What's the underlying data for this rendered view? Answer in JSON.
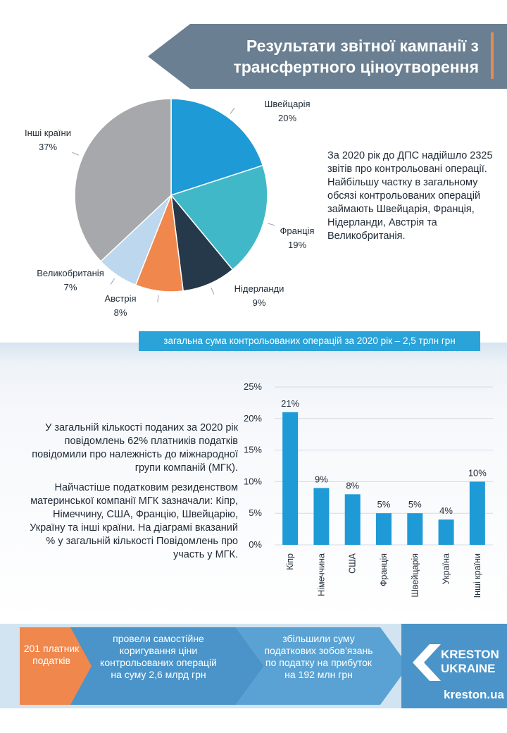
{
  "header": {
    "title_line1": "Результати звітної кампанії з",
    "title_line2": "трансфертного ціноутворення",
    "banner_color": "#6a7f91",
    "accent_color": "#e88a4a"
  },
  "pie_note": {
    "p1": "За 2020 рік до ДПС надійшло 2325 звітів про контрольовані операції.",
    "p2": "Найбільшу частку в загальному обсязі контрольованих операцій займають Швейцарія, Франція, Нідерланди, Австрія та Великобританія."
  },
  "total_bar": "загальна сума контрольованих операцій за 2020 рік – 2,5 трлн грн",
  "mgk_note": {
    "p1": "У загальній кількості поданих за 2020 рік повідомлень 62% платників податків повідомили про належність до міжнародної групи компаній (МГК).",
    "p2": "Найчастіше податковим резиденством материнської  компанії МГК зазначали: Кіпр, Німеччину, США, Францію, Швейцарію,  Україну та інші країни. На діаграмі вказаний % у загальній кількості Повідомлень про участь у МГК."
  },
  "flow": {
    "box1": "201 платник податків",
    "box2": "провели самостійне коригування ціни контрольованих операцій на суму 2,6 млрд грн",
    "box3": "збільшили суму податкових зобов'язань по податку на прибуток на 192 млн грн",
    "box1_color": "#f0874d",
    "arrow_color": "#4a94c9"
  },
  "logo": {
    "line1": "KRESTON",
    "line2": "UKRAINE",
    "site": "kreston.ua"
  },
  "chart_data": [
    {
      "type": "pie",
      "slices": [
        {
          "label": "Швейцарія",
          "value": 20,
          "display": "20%",
          "color": "#1e9ad6"
        },
        {
          "label": "Франція",
          "value": 19,
          "display": "19%",
          "color": "#41b8c8"
        },
        {
          "label": "Нідерланди",
          "value": 9,
          "display": "9%",
          "color": "#26394a"
        },
        {
          "label": "Австрія",
          "value": 8,
          "display": "8%",
          "color": "#f0874d"
        },
        {
          "label": "Великобританія",
          "value": 7,
          "display": "7%",
          "color": "#bcd7ee"
        },
        {
          "label": "Інші країни",
          "value": 37,
          "display": "37%",
          "color": "#a6a8ab"
        }
      ]
    },
    {
      "type": "bar",
      "categories": [
        "Кіпр",
        "Німеччина",
        "США",
        "Франція",
        "Швейцарія",
        "Україна",
        "Інші країни"
      ],
      "values": [
        21,
        9,
        8,
        5,
        5,
        4,
        10
      ],
      "labels": [
        "21%",
        "9%",
        "8%",
        "5%",
        "5%",
        "4%",
        "10%"
      ],
      "ylim": [
        0,
        25
      ],
      "yticks": [
        "0%",
        "5%",
        "10%",
        "15%",
        "20%",
        "25%"
      ],
      "grid": true,
      "bar_color": "#1e9ad6"
    }
  ]
}
